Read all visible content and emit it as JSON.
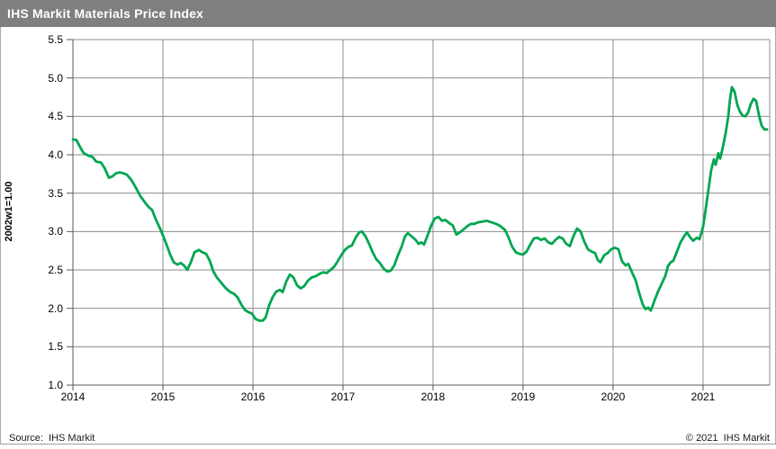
{
  "title_bar": {
    "title": "IHS Markit Materials Price Index",
    "bg_color": "#7f7f7f",
    "text_color": "#ffffff"
  },
  "footer": {
    "source": "Source:  IHS Markit",
    "copyright": "© 2021  IHS Markit"
  },
  "chart_data": {
    "type": "line",
    "title": "IHS Markit Materials Price Index",
    "xlabel": "",
    "ylabel": "2002w1=1.00",
    "xlim": [
      2014,
      2021.74
    ],
    "ylim": [
      1.0,
      5.5
    ],
    "x_ticks": [
      2014,
      2015,
      2016,
      2017,
      2018,
      2019,
      2020,
      2021
    ],
    "y_ticks": [
      1.0,
      1.5,
      2.0,
      2.5,
      3.0,
      3.5,
      4.0,
      4.5,
      5.0,
      5.5
    ],
    "y_tick_labels": [
      "1.0",
      "1.5",
      "2.0",
      "2.5",
      "3.0",
      "3.5",
      "4.0",
      "4.5",
      "5.0",
      "5.5"
    ],
    "grid": true,
    "grid_color": "#8c8c8c",
    "axis_color": "#595959",
    "line_color": "#00A651",
    "line_width": 2.8,
    "legend": "none",
    "series": [
      {
        "name": "Materials Price Index (2002w1=1.00)",
        "points": [
          [
            2014.0,
            4.2
          ],
          [
            2014.04,
            4.19
          ],
          [
            2014.08,
            4.1
          ],
          [
            2014.12,
            4.02
          ],
          [
            2014.17,
            3.99
          ],
          [
            2014.22,
            3.97
          ],
          [
            2014.26,
            3.91
          ],
          [
            2014.31,
            3.9
          ],
          [
            2014.35,
            3.83
          ],
          [
            2014.4,
            3.7
          ],
          [
            2014.44,
            3.72
          ],
          [
            2014.48,
            3.76
          ],
          [
            2014.52,
            3.77
          ],
          [
            2014.56,
            3.76
          ],
          [
            2014.6,
            3.74
          ],
          [
            2014.65,
            3.67
          ],
          [
            2014.7,
            3.57
          ],
          [
            2014.75,
            3.46
          ],
          [
            2014.8,
            3.38
          ],
          [
            2014.84,
            3.32
          ],
          [
            2014.88,
            3.28
          ],
          [
            2014.92,
            3.16
          ],
          [
            2014.96,
            3.06
          ],
          [
            2015.0,
            2.95
          ],
          [
            2015.04,
            2.83
          ],
          [
            2015.08,
            2.7
          ],
          [
            2015.12,
            2.6
          ],
          [
            2015.16,
            2.57
          ],
          [
            2015.2,
            2.59
          ],
          [
            2015.24,
            2.55
          ],
          [
            2015.27,
            2.5
          ],
          [
            2015.31,
            2.6
          ],
          [
            2015.35,
            2.73
          ],
          [
            2015.4,
            2.76
          ],
          [
            2015.44,
            2.73
          ],
          [
            2015.48,
            2.71
          ],
          [
            2015.52,
            2.62
          ],
          [
            2015.56,
            2.48
          ],
          [
            2015.6,
            2.4
          ],
          [
            2015.65,
            2.33
          ],
          [
            2015.7,
            2.26
          ],
          [
            2015.75,
            2.21
          ],
          [
            2015.79,
            2.19
          ],
          [
            2015.83,
            2.14
          ],
          [
            2015.87,
            2.05
          ],
          [
            2015.91,
            1.98
          ],
          [
            2015.95,
            1.95
          ],
          [
            2015.99,
            1.93
          ],
          [
            2016.03,
            1.86
          ],
          [
            2016.07,
            1.84
          ],
          [
            2016.11,
            1.84
          ],
          [
            2016.14,
            1.88
          ],
          [
            2016.18,
            2.04
          ],
          [
            2016.22,
            2.15
          ],
          [
            2016.26,
            2.22
          ],
          [
            2016.3,
            2.24
          ],
          [
            2016.33,
            2.21
          ],
          [
            2016.37,
            2.35
          ],
          [
            2016.41,
            2.44
          ],
          [
            2016.45,
            2.4
          ],
          [
            2016.49,
            2.3
          ],
          [
            2016.53,
            2.26
          ],
          [
            2016.57,
            2.29
          ],
          [
            2016.61,
            2.36
          ],
          [
            2016.65,
            2.4
          ],
          [
            2016.7,
            2.42
          ],
          [
            2016.74,
            2.45
          ],
          [
            2016.78,
            2.47
          ],
          [
            2016.82,
            2.46
          ],
          [
            2016.86,
            2.5
          ],
          [
            2016.9,
            2.54
          ],
          [
            2016.94,
            2.61
          ],
          [
            2016.98,
            2.69
          ],
          [
            2017.02,
            2.76
          ],
          [
            2017.06,
            2.8
          ],
          [
            2017.1,
            2.82
          ],
          [
            2017.14,
            2.92
          ],
          [
            2017.18,
            2.99
          ],
          [
            2017.21,
            3.0
          ],
          [
            2017.25,
            2.94
          ],
          [
            2017.29,
            2.84
          ],
          [
            2017.33,
            2.73
          ],
          [
            2017.37,
            2.64
          ],
          [
            2017.41,
            2.59
          ],
          [
            2017.45,
            2.52
          ],
          [
            2017.49,
            2.48
          ],
          [
            2017.53,
            2.49
          ],
          [
            2017.57,
            2.56
          ],
          [
            2017.61,
            2.69
          ],
          [
            2017.65,
            2.8
          ],
          [
            2017.69,
            2.94
          ],
          [
            2017.72,
            2.98
          ],
          [
            2017.76,
            2.94
          ],
          [
            2017.8,
            2.9
          ],
          [
            2017.84,
            2.84
          ],
          [
            2017.87,
            2.86
          ],
          [
            2017.9,
            2.83
          ],
          [
            2017.94,
            2.95
          ],
          [
            2017.98,
            3.08
          ],
          [
            2018.02,
            3.17
          ],
          [
            2018.06,
            3.19
          ],
          [
            2018.1,
            3.14
          ],
          [
            2018.14,
            3.15
          ],
          [
            2018.18,
            3.11
          ],
          [
            2018.22,
            3.08
          ],
          [
            2018.26,
            2.96
          ],
          [
            2018.3,
            2.99
          ],
          [
            2018.34,
            3.03
          ],
          [
            2018.38,
            3.07
          ],
          [
            2018.42,
            3.1
          ],
          [
            2018.46,
            3.1
          ],
          [
            2018.5,
            3.12
          ],
          [
            2018.55,
            3.13
          ],
          [
            2018.6,
            3.14
          ],
          [
            2018.65,
            3.12
          ],
          [
            2018.7,
            3.1
          ],
          [
            2018.75,
            3.07
          ],
          [
            2018.8,
            3.02
          ],
          [
            2018.84,
            2.92
          ],
          [
            2018.88,
            2.8
          ],
          [
            2018.92,
            2.73
          ],
          [
            2018.96,
            2.71
          ],
          [
            2019.0,
            2.7
          ],
          [
            2019.04,
            2.74
          ],
          [
            2019.08,
            2.83
          ],
          [
            2019.12,
            2.91
          ],
          [
            2019.16,
            2.92
          ],
          [
            2019.2,
            2.89
          ],
          [
            2019.24,
            2.91
          ],
          [
            2019.28,
            2.86
          ],
          [
            2019.32,
            2.84
          ],
          [
            2019.36,
            2.89
          ],
          [
            2019.4,
            2.93
          ],
          [
            2019.44,
            2.91
          ],
          [
            2019.48,
            2.84
          ],
          [
            2019.52,
            2.81
          ],
          [
            2019.56,
            2.94
          ],
          [
            2019.6,
            3.04
          ],
          [
            2019.64,
            3.0
          ],
          [
            2019.68,
            2.87
          ],
          [
            2019.72,
            2.77
          ],
          [
            2019.76,
            2.74
          ],
          [
            2019.8,
            2.72
          ],
          [
            2019.83,
            2.63
          ],
          [
            2019.86,
            2.6
          ],
          [
            2019.9,
            2.69
          ],
          [
            2019.94,
            2.72
          ],
          [
            2019.98,
            2.77
          ],
          [
            2020.02,
            2.79
          ],
          [
            2020.06,
            2.77
          ],
          [
            2020.1,
            2.61
          ],
          [
            2020.14,
            2.56
          ],
          [
            2020.17,
            2.58
          ],
          [
            2020.21,
            2.47
          ],
          [
            2020.25,
            2.37
          ],
          [
            2020.29,
            2.2
          ],
          [
            2020.33,
            2.05
          ],
          [
            2020.36,
            1.99
          ],
          [
            2020.39,
            2.01
          ],
          [
            2020.42,
            1.97
          ],
          [
            2020.46,
            2.1
          ],
          [
            2020.5,
            2.22
          ],
          [
            2020.54,
            2.32
          ],
          [
            2020.58,
            2.42
          ],
          [
            2020.61,
            2.55
          ],
          [
            2020.64,
            2.6
          ],
          [
            2020.67,
            2.62
          ],
          [
            2020.71,
            2.74
          ],
          [
            2020.75,
            2.86
          ],
          [
            2020.79,
            2.94
          ],
          [
            2020.82,
            2.99
          ],
          [
            2020.86,
            2.92
          ],
          [
            2020.89,
            2.88
          ],
          [
            2020.93,
            2.92
          ],
          [
            2020.96,
            2.9
          ],
          [
            2021.0,
            3.06
          ],
          [
            2021.03,
            3.3
          ],
          [
            2021.06,
            3.55
          ],
          [
            2021.09,
            3.8
          ],
          [
            2021.12,
            3.94
          ],
          [
            2021.14,
            3.87
          ],
          [
            2021.17,
            4.02
          ],
          [
            2021.19,
            3.95
          ],
          [
            2021.22,
            4.1
          ],
          [
            2021.25,
            4.28
          ],
          [
            2021.28,
            4.5
          ],
          [
            2021.3,
            4.73
          ],
          [
            2021.32,
            4.88
          ],
          [
            2021.35,
            4.82
          ],
          [
            2021.38,
            4.65
          ],
          [
            2021.41,
            4.56
          ],
          [
            2021.44,
            4.51
          ],
          [
            2021.47,
            4.5
          ],
          [
            2021.5,
            4.55
          ],
          [
            2021.53,
            4.66
          ],
          [
            2021.56,
            4.73
          ],
          [
            2021.59,
            4.7
          ],
          [
            2021.62,
            4.52
          ],
          [
            2021.65,
            4.38
          ],
          [
            2021.68,
            4.33
          ],
          [
            2021.71,
            4.33
          ]
        ]
      }
    ]
  }
}
